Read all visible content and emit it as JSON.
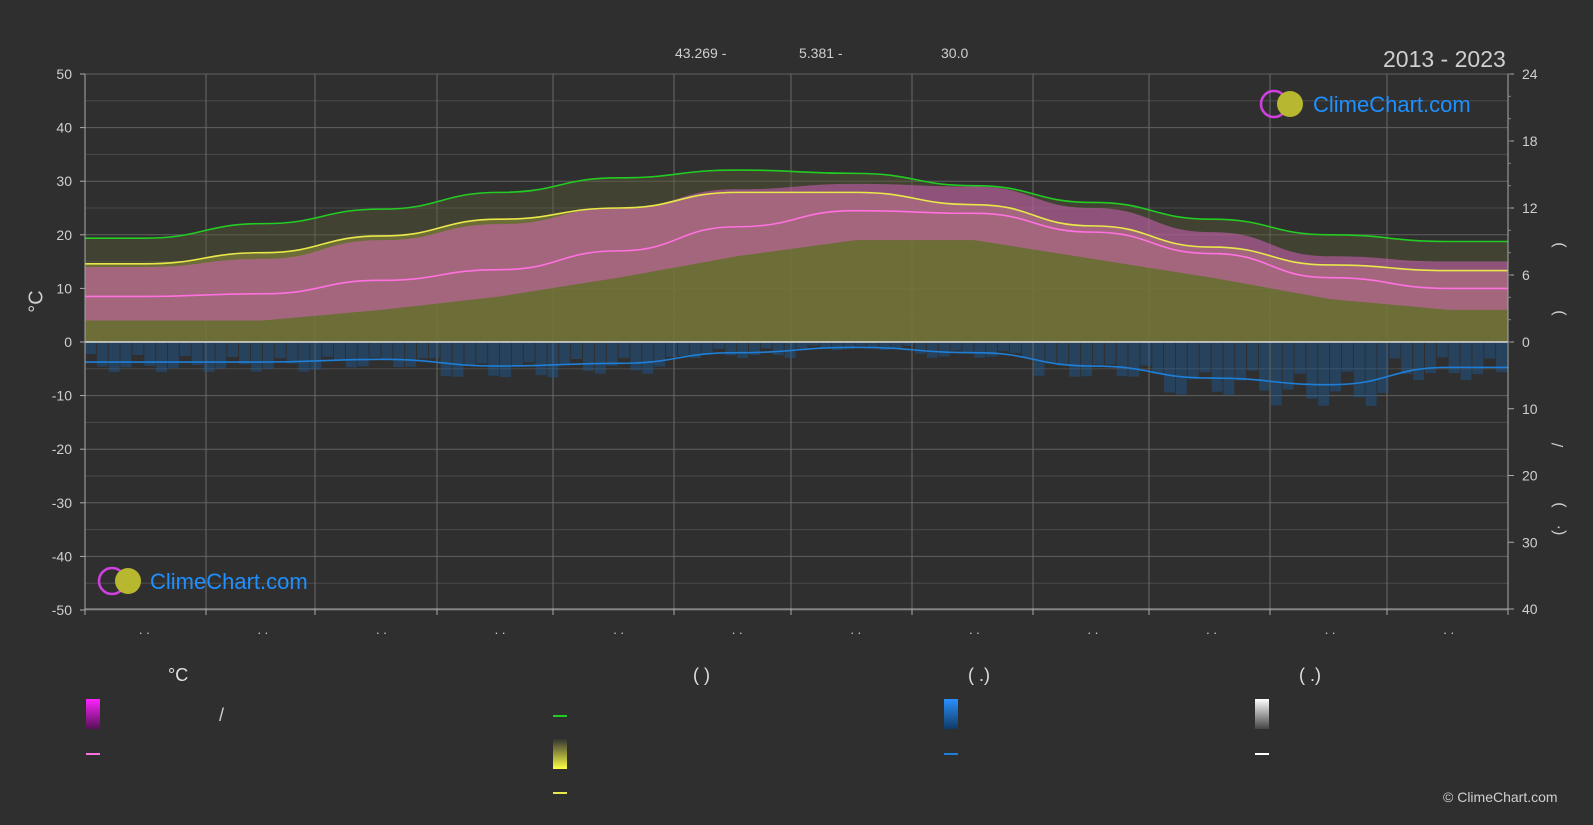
{
  "header": {
    "coords": [
      "43.269 -",
      "5.381 -",
      "30.0"
    ],
    "period": "2013 - 2023"
  },
  "brand": {
    "name": "ClimeChart.com",
    "copyright": "© ClimeChart.com"
  },
  "axes": {
    "left_unit": "°C",
    "left_ticks": [
      "50",
      "40",
      "30",
      "20",
      "10",
      "0",
      "-10",
      "-20",
      "-30",
      "-40",
      "-50"
    ],
    "right_top_ticks": [
      "24",
      "18",
      "12",
      "6",
      "0"
    ],
    "right_bottom_ticks": [
      "10",
      "20",
      "30",
      "40"
    ],
    "month_labels": [
      ". .",
      ". .",
      ". .",
      ". .",
      ". .",
      ". .",
      ". .",
      ". .",
      ". .",
      ". .",
      ". .",
      ". ."
    ],
    "right_axis_marks": [
      ")",
      ")",
      "/",
      ")",
      "(·"
    ]
  },
  "legend": {
    "col1_head": "°C",
    "col1_slash": "/",
    "col2_head": "(          )",
    "col3_head": "(   .)",
    "col4_head": "(   .)"
  },
  "colors": {
    "daylight": "#22cc22",
    "sunshine": "#e8e84a",
    "sunshine_area": "#8a8a3a",
    "temp_mean": "#ff70e0",
    "temp_band": "#d060b8",
    "precip": "#1e7fd8",
    "snow": "#ffffff",
    "grid": "#5a5a5a"
  },
  "chart_data": {
    "type": "line",
    "ylim_temperature": [
      -50,
      50
    ],
    "ylim_hours": [
      0,
      24
    ],
    "ylim_precip_mm": [
      0,
      40
    ],
    "months": 12,
    "series": [
      {
        "key": "daylight",
        "values": [
          9.3,
          10.6,
          11.9,
          13.4,
          14.7,
          15.4,
          15.1,
          14.0,
          12.5,
          11.0,
          9.6,
          9.0
        ]
      },
      {
        "key": "sunshine",
        "values": [
          7.0,
          8.0,
          9.5,
          11.0,
          12.0,
          13.4,
          13.4,
          12.3,
          10.4,
          8.5,
          6.9,
          6.4
        ]
      },
      {
        "key": "temp_mean",
        "values": [
          8.5,
          9.0,
          11.5,
          13.5,
          17.0,
          21.5,
          24.5,
          24.0,
          20.5,
          16.5,
          12.0,
          10.0
        ]
      },
      {
        "key": "temp_max",
        "values": [
          14.0,
          15.5,
          19.0,
          22.0,
          25.0,
          28.5,
          29.5,
          29.0,
          25.0,
          20.5,
          16.0,
          15.0
        ]
      },
      {
        "key": "temp_min",
        "values": [
          4.0,
          4.0,
          6.0,
          8.5,
          12.0,
          16.0,
          19.0,
          19.0,
          15.5,
          12.0,
          8.0,
          6.0
        ]
      },
      {
        "key": "precip_mm",
        "values": [
          3.0,
          3.0,
          2.6,
          3.6,
          3.2,
          1.6,
          0.8,
          1.6,
          3.6,
          5.4,
          6.4,
          3.8
        ]
      }
    ]
  }
}
